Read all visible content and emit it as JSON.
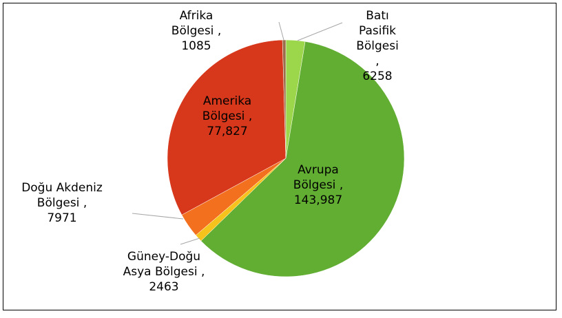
{
  "chart_data": {
    "type": "pie",
    "categories": [
      "Batı Pasifik Bölgesi",
      "Avrupa Bölgesi",
      "Güney-Doğu Asya Bölgesi",
      "Doğu Akdeniz Bölgesi",
      "Amerika Bölgesi",
      "Afrika Bölgesi"
    ],
    "values": [
      6258,
      143987,
      2463,
      7971,
      77827,
      1085
    ],
    "value_labels": [
      "6258",
      "143,987",
      "2463",
      "7971",
      "77,827",
      "1085"
    ],
    "label_separator": ",",
    "colors": [
      "#9cd64a",
      "#62ae33",
      "#f6c21c",
      "#f3701f",
      "#d7381b",
      "#9c6d4a"
    ]
  }
}
